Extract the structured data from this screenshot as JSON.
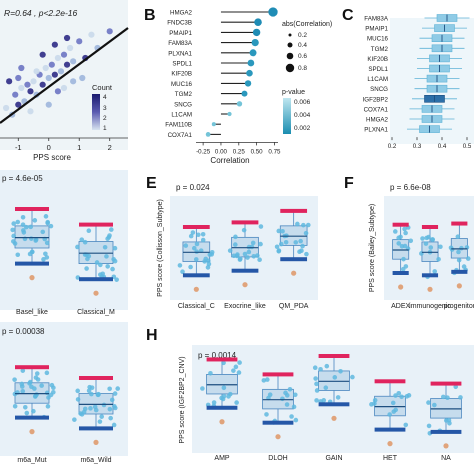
{
  "panels": {
    "A": {
      "annotation": "R=0.64 , p<2.2e-16",
      "xlabel": "PPS score",
      "xticks": [
        "-1",
        "0",
        "1",
        "2"
      ],
      "legend": {
        "title": "Count",
        "ticks": [
          "4",
          "3",
          "2",
          "1"
        ]
      }
    },
    "B": {
      "label": "B",
      "xlabel": "Correlation",
      "xticks": [
        "-0.25",
        "0.00",
        "0.25",
        "0.50",
        "0.75"
      ],
      "size_legend_title": "abs(Correlation)",
      "size_legend_values": [
        "0.2",
        "0.4",
        "0.6",
        "0.8"
      ],
      "color_legend_title": "p-value",
      "color_legend_ticks": [
        "0.006",
        "0.004",
        "0.002"
      ]
    },
    "C": {
      "label": "C",
      "xticks": [
        "0.2",
        "0.3",
        "0.4",
        "0.5"
      ]
    },
    "D": {
      "annotation": "p = 4.6e-05",
      "categories": [
        "Basel_like",
        "Classical_M"
      ]
    },
    "E": {
      "label": "E",
      "annotation": "p = 0.024",
      "ylabel": "PPS score (Collisson_Subtype)",
      "categories": [
        "Classical_C",
        "Exocrine_like",
        "QM_PDA"
      ]
    },
    "F": {
      "label": "F",
      "annotation": "p = 6.6e-08",
      "ylabel": "PPS score (Bailey_Subtype)",
      "categories": [
        "ADEX",
        "immunogenic",
        "progenitor"
      ]
    },
    "G": {
      "annotation": "p = 0.00038",
      "categories": [
        "m6a_Mut",
        "m6a_Wild"
      ]
    },
    "H": {
      "label": "H",
      "annotation": "p = 0.0014",
      "ylabel": "PPS score (IGF2BP2_CNV)",
      "categories": [
        "AMP",
        "DLOH",
        "GAIN",
        "HET",
        "NA"
      ]
    }
  },
  "chart_data": [
    {
      "panel": "A",
      "type": "scatter",
      "xlabel": "PPS score",
      "x_range": [
        -1.6,
        2.6
      ],
      "y_range": [
        -1.2,
        2.4
      ],
      "points": [
        [
          -1.4,
          -0.3
        ],
        [
          -1.2,
          -0.5
        ],
        [
          -1.1,
          0.1
        ],
        [
          -1.0,
          -0.2
        ],
        [
          -0.9,
          0.3
        ],
        [
          -0.8,
          -0.1
        ],
        [
          -0.7,
          0.4
        ],
        [
          -0.6,
          0.2
        ],
        [
          -0.5,
          0.5
        ],
        [
          -0.4,
          0.1
        ],
        [
          -0.3,
          0.7
        ],
        [
          -0.2,
          0.4
        ],
        [
          -0.1,
          0.9
        ],
        [
          0.0,
          0.6
        ],
        [
          0.1,
          1.0
        ],
        [
          0.2,
          0.7
        ],
        [
          0.3,
          1.2
        ],
        [
          0.4,
          0.8
        ],
        [
          0.5,
          1.3
        ],
        [
          0.6,
          1.0
        ],
        [
          0.7,
          1.5
        ],
        [
          0.8,
          1.1
        ],
        [
          1.0,
          1.7
        ],
        [
          1.2,
          1.2
        ],
        [
          1.4,
          1.9
        ],
        [
          1.6,
          1.5
        ],
        [
          2.0,
          2.0
        ],
        [
          -1.3,
          0.5
        ],
        [
          -0.6,
          -0.4
        ],
        [
          0.0,
          -0.2
        ],
        [
          0.3,
          0.2
        ],
        [
          -0.2,
          1.3
        ],
        [
          0.5,
          0.3
        ],
        [
          1.1,
          0.6
        ],
        [
          -0.9,
          0.9
        ],
        [
          0.2,
          1.6
        ],
        [
          -0.4,
          0.8
        ],
        [
          0.8,
          0.5
        ],
        [
          -1.0,
          0.6
        ],
        [
          0.6,
          1.8
        ]
      ],
      "fit_line": {
        "x": [
          -1.6,
          2.6
        ],
        "y": [
          -0.75,
          2.1
        ]
      }
    },
    {
      "panel": "B",
      "type": "scatter",
      "xlabel": "Correlation",
      "categories": [
        "HMGA2",
        "FNDC3B",
        "PMAIP1",
        "FAM83A",
        "PLXNA1",
        "SPDL1",
        "KIF20B",
        "MUC16",
        "TGM2",
        "SNCG",
        "L1CAM",
        "FAM110B",
        "COX7A1"
      ],
      "values": [
        0.73,
        0.52,
        0.5,
        0.48,
        0.45,
        0.42,
        0.4,
        0.38,
        0.33,
        0.26,
        0.12,
        -0.1,
        -0.18
      ],
      "x_range": [
        -0.35,
        0.8
      ]
    },
    {
      "panel": "C",
      "type": "bar",
      "categories": [
        "FAM83A",
        "PMAIP1",
        "MUC16",
        "TGM2",
        "KIF20B",
        "SPDL1",
        "L1CAM",
        "SNCG",
        "IGF2BP2",
        "COX7A1",
        "HMGA2",
        "PLXNA1"
      ],
      "series": [
        {
          "values": [
            0.42,
            0.41,
            0.4,
            0.4,
            0.39,
            0.39,
            0.38,
            0.38,
            0.37,
            0.36,
            0.36,
            0.35
          ]
        }
      ],
      "x_range": [
        0.2,
        0.52
      ]
    },
    {
      "panel": "D",
      "type": "bar",
      "categories": [
        "Basel_like",
        "Classical_M"
      ],
      "series": [
        {
          "values": [
            0.48,
            0.36
          ]
        }
      ]
    },
    {
      "panel": "E",
      "type": "bar",
      "ylabel": "PPS score (Collisson_Subtype)",
      "categories": [
        "Classical_C",
        "Exocrine_like",
        "QM_PDA"
      ],
      "series": [
        {
          "values": [
            0.38,
            0.42,
            0.52
          ]
        }
      ]
    },
    {
      "panel": "F",
      "type": "bar",
      "ylabel": "PPS score (Bailey_Subtype)",
      "categories": [
        "ADEX",
        "immunogenic",
        "progenitor"
      ],
      "series": [
        {
          "values": [
            0.4,
            0.38,
            0.41
          ]
        }
      ]
    },
    {
      "panel": "G",
      "type": "bar",
      "categories": [
        "m6a_Mut",
        "m6a_Wild"
      ],
      "series": [
        {
          "values": [
            0.42,
            0.33
          ]
        }
      ]
    },
    {
      "panel": "H",
      "type": "bar",
      "ylabel": "PPS score (IGF2BP2_CNV)",
      "categories": [
        "AMP",
        "DLOH",
        "GAIN",
        "HET",
        "NA"
      ],
      "series": [
        {
          "values": [
            0.55,
            0.42,
            0.58,
            0.36,
            0.34
          ]
        }
      ]
    }
  ]
}
